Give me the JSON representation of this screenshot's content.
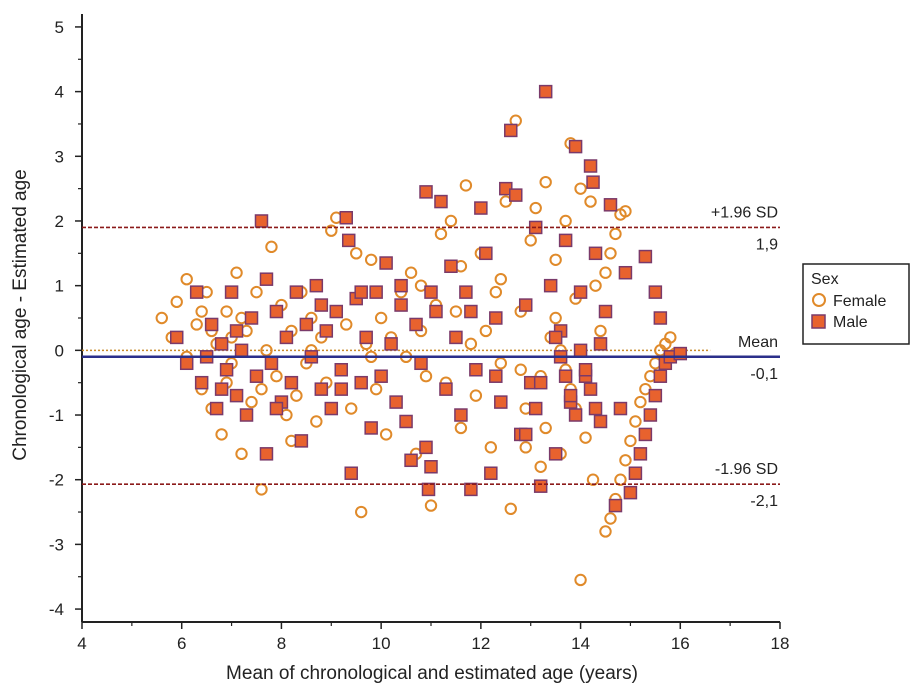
{
  "chart_data": {
    "type": "scatter",
    "title": "",
    "xlabel": "Mean of chronological and estimated age (years)",
    "ylabel": "Chronological age - Estimated age",
    "xlim": [
      4,
      18
    ],
    "ylim": [
      -4.2,
      5.2
    ],
    "x_ticks": [
      4,
      6,
      8,
      10,
      12,
      14,
      16,
      18
    ],
    "y_ticks": [
      -4,
      -3,
      -2,
      -1,
      0,
      1,
      2,
      3,
      4,
      5
    ],
    "grid": false,
    "legend": {
      "title": "Sex",
      "placement": "right",
      "entries": [
        "Female",
        "Male"
      ]
    },
    "colors": {
      "female_stroke": "#e08a2a",
      "male_fill": "#e8622e",
      "male_stroke": "#7a3a6a",
      "mean_line": "#2b2f8a",
      "sd_line": "#8b1a1a",
      "zero_line": "#c98a2a"
    },
    "reference_lines": [
      {
        "label": "+1.96 SD",
        "value_label": "1,9",
        "y": 1.9,
        "style": "dashed"
      },
      {
        "label": "Mean",
        "value_label": "-0,1",
        "y": -0.1,
        "style": "solid"
      },
      {
        "label": "-1.96 SD",
        "value_label": "-2,1",
        "y": -2.07,
        "style": "dashed"
      }
    ],
    "series": [
      {
        "name": "Female",
        "marker": "circle-open",
        "points": [
          [
            5.6,
            0.5
          ],
          [
            5.8,
            0.2
          ],
          [
            5.9,
            0.75
          ],
          [
            6.1,
            1.1
          ],
          [
            6.1,
            -0.1
          ],
          [
            6.3,
            0.4
          ],
          [
            6.4,
            -0.6
          ],
          [
            6.5,
            0.9
          ],
          [
            6.6,
            -0.9
          ],
          [
            6.7,
            0.1
          ],
          [
            6.8,
            -1.3
          ],
          [
            6.9,
            0.6
          ],
          [
            7.0,
            -0.2
          ],
          [
            7.1,
            1.2
          ],
          [
            7.2,
            -1.6
          ],
          [
            7.3,
            0.3
          ],
          [
            7.4,
            -0.8
          ],
          [
            7.5,
            0.9
          ],
          [
            7.6,
            -2.15
          ],
          [
            7.7,
            0.0
          ],
          [
            7.8,
            1.6
          ],
          [
            7.9,
            -0.4
          ],
          [
            8.0,
            0.7
          ],
          [
            8.1,
            -1.0
          ],
          [
            8.2,
            0.3
          ],
          [
            8.3,
            -0.7
          ],
          [
            8.4,
            0.9
          ],
          [
            8.5,
            -0.2
          ],
          [
            8.6,
            0.5
          ],
          [
            8.7,
            -1.1
          ],
          [
            8.8,
            0.2
          ],
          [
            8.9,
            -0.5
          ],
          [
            9.0,
            1.85
          ],
          [
            9.1,
            2.05
          ],
          [
            9.2,
            -0.3
          ],
          [
            9.3,
            0.4
          ],
          [
            9.4,
            -0.9
          ],
          [
            9.5,
            1.5
          ],
          [
            9.6,
            -2.5
          ],
          [
            9.7,
            0.1
          ],
          [
            9.8,
            1.4
          ],
          [
            9.9,
            -0.6
          ],
          [
            10.0,
            0.5
          ],
          [
            10.1,
            -1.3
          ],
          [
            10.2,
            0.2
          ],
          [
            10.3,
            -0.8
          ],
          [
            10.4,
            0.9
          ],
          [
            10.5,
            -0.1
          ],
          [
            10.6,
            1.2
          ],
          [
            10.7,
            -1.6
          ],
          [
            10.8,
            0.3
          ],
          [
            10.9,
            -0.4
          ],
          [
            11.0,
            -2.4
          ],
          [
            11.1,
            0.7
          ],
          [
            11.2,
            1.8
          ],
          [
            11.3,
            -0.5
          ],
          [
            11.4,
            2.0
          ],
          [
            11.5,
            0.6
          ],
          [
            11.6,
            -1.2
          ],
          [
            11.7,
            2.55
          ],
          [
            11.8,
            0.1
          ],
          [
            11.9,
            -0.7
          ],
          [
            12.0,
            1.5
          ],
          [
            12.1,
            0.3
          ],
          [
            12.2,
            -1.5
          ],
          [
            12.3,
            0.9
          ],
          [
            12.4,
            -0.2
          ],
          [
            12.5,
            2.3
          ],
          [
            12.6,
            -2.45
          ],
          [
            12.7,
            3.55
          ],
          [
            12.8,
            0.6
          ],
          [
            12.9,
            -0.9
          ],
          [
            13.0,
            1.7
          ],
          [
            13.1,
            2.2
          ],
          [
            13.2,
            -0.4
          ],
          [
            13.3,
            2.6
          ],
          [
            13.4,
            0.2
          ],
          [
            13.5,
            1.4
          ],
          [
            13.6,
            -1.6
          ],
          [
            13.7,
            2.0
          ],
          [
            13.8,
            3.2
          ],
          [
            13.9,
            0.8
          ],
          [
            14.0,
            2.5
          ],
          [
            14.1,
            -1.35
          ],
          [
            14.2,
            2.3
          ],
          [
            14.25,
            -2.0
          ],
          [
            14.3,
            1.0
          ],
          [
            14.4,
            0.3
          ],
          [
            14.5,
            1.2
          ],
          [
            14.6,
            1.5
          ],
          [
            14.7,
            1.8
          ],
          [
            14.8,
            2.1
          ],
          [
            14.9,
            2.15
          ],
          [
            14.0,
            -3.55
          ],
          [
            14.5,
            -2.8
          ],
          [
            14.6,
            -2.6
          ],
          [
            14.7,
            -2.3
          ],
          [
            14.8,
            -2.0
          ],
          [
            14.9,
            -1.7
          ],
          [
            15.0,
            -1.4
          ],
          [
            15.1,
            -1.1
          ],
          [
            15.2,
            -0.8
          ],
          [
            15.3,
            -0.6
          ],
          [
            15.4,
            -0.4
          ],
          [
            15.5,
            -0.2
          ],
          [
            15.6,
            0.0
          ],
          [
            15.7,
            0.1
          ],
          [
            15.8,
            0.2
          ],
          [
            15.9,
            -0.05
          ],
          [
            13.5,
            0.5
          ],
          [
            13.6,
            0.0
          ],
          [
            13.7,
            -0.3
          ],
          [
            13.8,
            -0.6
          ],
          [
            13.9,
            -0.9
          ],
          [
            13.3,
            -1.2
          ],
          [
            13.2,
            -1.8
          ],
          [
            12.9,
            -1.5
          ],
          [
            12.8,
            -0.3
          ],
          [
            7.0,
            0.2
          ],
          [
            7.2,
            0.5
          ],
          [
            6.6,
            0.3
          ],
          [
            6.9,
            -0.5
          ],
          [
            8.2,
            -1.4
          ],
          [
            9.8,
            -0.1
          ],
          [
            10.8,
            1.0
          ],
          [
            11.6,
            1.3
          ],
          [
            12.4,
            1.1
          ],
          [
            6.4,
            0.6
          ],
          [
            7.6,
            -0.6
          ],
          [
            8.6,
            0.0
          ]
        ]
      },
      {
        "name": "Male",
        "marker": "square-filled",
        "points": [
          [
            5.9,
            0.2
          ],
          [
            6.1,
            -0.2
          ],
          [
            6.3,
            0.9
          ],
          [
            6.4,
            -0.5
          ],
          [
            6.6,
            0.4
          ],
          [
            6.7,
            -0.9
          ],
          [
            6.8,
            0.1
          ],
          [
            6.9,
            -0.3
          ],
          [
            7.0,
            0.9
          ],
          [
            7.1,
            -0.7
          ],
          [
            7.2,
            0.0
          ],
          [
            7.3,
            -1.0
          ],
          [
            7.4,
            0.5
          ],
          [
            7.5,
            -0.4
          ],
          [
            7.6,
            2.0
          ],
          [
            7.7,
            1.1
          ],
          [
            7.7,
            -1.6
          ],
          [
            7.8,
            -0.2
          ],
          [
            7.9,
            0.6
          ],
          [
            8.0,
            -0.8
          ],
          [
            8.1,
            0.2
          ],
          [
            8.2,
            -0.5
          ],
          [
            8.3,
            0.9
          ],
          [
            8.4,
            -1.4
          ],
          [
            8.5,
            0.4
          ],
          [
            8.6,
            -0.1
          ],
          [
            8.7,
            1.0
          ],
          [
            8.8,
            -0.6
          ],
          [
            8.9,
            0.3
          ],
          [
            9.0,
            -0.9
          ],
          [
            9.1,
            0.6
          ],
          [
            9.2,
            -0.3
          ],
          [
            9.3,
            2.05
          ],
          [
            9.35,
            1.7
          ],
          [
            9.4,
            -1.9
          ],
          [
            9.5,
            0.8
          ],
          [
            9.6,
            -0.5
          ],
          [
            9.7,
            0.2
          ],
          [
            9.8,
            -1.2
          ],
          [
            9.9,
            0.9
          ],
          [
            10.0,
            -0.4
          ],
          [
            10.1,
            1.35
          ],
          [
            10.2,
            0.1
          ],
          [
            10.3,
            -0.8
          ],
          [
            10.4,
            0.7
          ],
          [
            10.5,
            -1.1
          ],
          [
            10.6,
            -1.7
          ],
          [
            10.7,
            0.4
          ],
          [
            10.8,
            -0.2
          ],
          [
            10.9,
            2.45
          ],
          [
            10.95,
            -2.15
          ],
          [
            11.0,
            -1.8
          ],
          [
            11.1,
            0.6
          ],
          [
            11.2,
            2.3
          ],
          [
            11.3,
            -0.6
          ],
          [
            11.4,
            1.3
          ],
          [
            11.5,
            0.2
          ],
          [
            11.6,
            -1.0
          ],
          [
            11.7,
            0.9
          ],
          [
            11.8,
            -2.15
          ],
          [
            11.9,
            -0.3
          ],
          [
            12.0,
            2.2
          ],
          [
            12.1,
            1.5
          ],
          [
            12.2,
            -1.9
          ],
          [
            12.3,
            0.5
          ],
          [
            12.4,
            -0.8
          ],
          [
            12.5,
            2.5
          ],
          [
            12.6,
            3.4
          ],
          [
            12.7,
            2.4
          ],
          [
            12.8,
            -1.3
          ],
          [
            12.9,
            0.7
          ],
          [
            13.0,
            -0.5
          ],
          [
            13.1,
            1.9
          ],
          [
            13.2,
            -2.1
          ],
          [
            13.3,
            4.0
          ],
          [
            13.4,
            1.0
          ],
          [
            13.5,
            -1.6
          ],
          [
            13.6,
            0.3
          ],
          [
            13.7,
            1.7
          ],
          [
            13.8,
            -0.8
          ],
          [
            13.9,
            3.15
          ],
          [
            14.0,
            0.9
          ],
          [
            14.1,
            -0.4
          ],
          [
            14.2,
            2.85
          ],
          [
            14.25,
            2.6
          ],
          [
            14.3,
            1.5
          ],
          [
            14.4,
            -1.1
          ],
          [
            14.5,
            0.6
          ],
          [
            14.6,
            2.25
          ],
          [
            14.7,
            -2.4
          ],
          [
            14.8,
            -0.9
          ],
          [
            14.9,
            1.2
          ],
          [
            15.0,
            -2.2
          ],
          [
            15.1,
            -1.9
          ],
          [
            15.2,
            -1.6
          ],
          [
            15.3,
            -1.3
          ],
          [
            15.4,
            -1.0
          ],
          [
            15.5,
            -0.7
          ],
          [
            15.6,
            -0.4
          ],
          [
            15.7,
            -0.2
          ],
          [
            15.8,
            -0.1
          ],
          [
            16.0,
            -0.05
          ],
          [
            15.3,
            1.45
          ],
          [
            15.5,
            0.9
          ],
          [
            15.6,
            0.5
          ],
          [
            14.0,
            0.0
          ],
          [
            14.1,
            -0.3
          ],
          [
            14.2,
            -0.6
          ],
          [
            14.3,
            -0.9
          ],
          [
            14.4,
            0.1
          ],
          [
            13.5,
            0.2
          ],
          [
            13.6,
            -0.1
          ],
          [
            13.7,
            -0.4
          ],
          [
            13.8,
            -0.7
          ],
          [
            13.9,
            -1.0
          ],
          [
            13.2,
            -0.5
          ],
          [
            13.1,
            -0.9
          ],
          [
            12.9,
            -1.3
          ],
          [
            7.1,
            0.3
          ],
          [
            6.5,
            -0.1
          ],
          [
            8.8,
            0.7
          ],
          [
            9.6,
            0.9
          ],
          [
            10.4,
            1.0
          ],
          [
            11.0,
            0.9
          ],
          [
            11.8,
            0.6
          ],
          [
            12.3,
            -0.4
          ],
          [
            6.8,
            -0.6
          ],
          [
            7.9,
            -0.9
          ],
          [
            9.2,
            -0.6
          ],
          [
            10.9,
            -1.5
          ]
        ]
      }
    ]
  }
}
